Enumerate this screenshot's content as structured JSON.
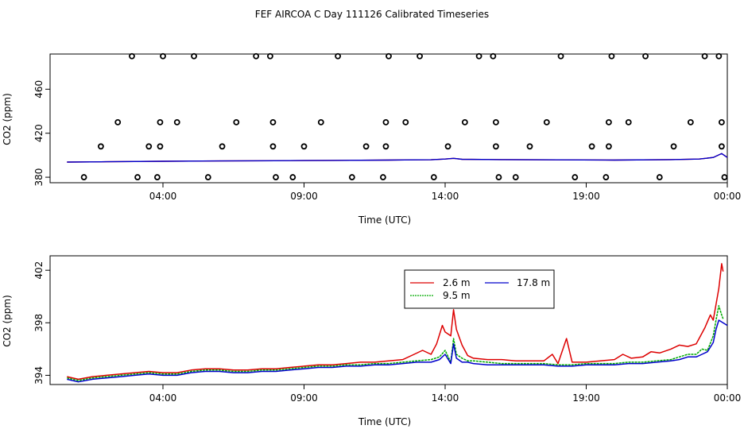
{
  "title": "FEF AIRCOA C  Day 111126  Calibrated Timeseries",
  "colors": {
    "s1": "#dd0000",
    "s2": "#00aa00",
    "s3": "#0000cc",
    "axis": "#000000"
  },
  "chart_data": [
    {
      "type": "scatter",
      "xlabel": "Time (UTC)",
      "ylabel": "CO2 (ppm)",
      "xticks": [
        {
          "v": 4,
          "label": "04:00"
        },
        {
          "v": 9,
          "label": "09:00"
        },
        {
          "v": 14,
          "label": "14:00"
        },
        {
          "v": 19,
          "label": "19:00"
        },
        {
          "v": 24,
          "label": "00:00"
        }
      ],
      "yticks": [
        {
          "v": 380,
          "label": "380"
        },
        {
          "v": 420,
          "label": "420"
        },
        {
          "v": 460,
          "label": "460"
        }
      ],
      "xlim": [
        0,
        24
      ],
      "ylim": [
        375,
        492
      ],
      "markers": [
        [
          1.2,
          380
        ],
        [
          1.8,
          408
        ],
        [
          2.4,
          430
        ],
        [
          2.9,
          490
        ],
        [
          3.1,
          380
        ],
        [
          3.5,
          408
        ],
        [
          3.8,
          380
        ],
        [
          3.9,
          408
        ],
        [
          3.9,
          430
        ],
        [
          4.0,
          490
        ],
        [
          4.5,
          430
        ],
        [
          5.1,
          490
        ],
        [
          5.6,
          380
        ],
        [
          6.1,
          408
        ],
        [
          6.6,
          430
        ],
        [
          7.3,
          490
        ],
        [
          7.8,
          490
        ],
        [
          7.9,
          430
        ],
        [
          7.9,
          408
        ],
        [
          8.0,
          380
        ],
        [
          8.6,
          380
        ],
        [
          9.0,
          408
        ],
        [
          9.6,
          430
        ],
        [
          10.2,
          490
        ],
        [
          10.7,
          380
        ],
        [
          11.2,
          408
        ],
        [
          11.8,
          380
        ],
        [
          11.9,
          408
        ],
        [
          11.9,
          430
        ],
        [
          12.0,
          490
        ],
        [
          12.6,
          430
        ],
        [
          13.1,
          490
        ],
        [
          13.6,
          380
        ],
        [
          14.1,
          408
        ],
        [
          14.7,
          430
        ],
        [
          15.2,
          490
        ],
        [
          15.7,
          490
        ],
        [
          15.8,
          430
        ],
        [
          15.8,
          408
        ],
        [
          15.9,
          380
        ],
        [
          16.5,
          380
        ],
        [
          17.0,
          408
        ],
        [
          17.6,
          430
        ],
        [
          18.1,
          490
        ],
        [
          18.6,
          380
        ],
        [
          19.2,
          408
        ],
        [
          19.7,
          380
        ],
        [
          19.8,
          408
        ],
        [
          19.8,
          430
        ],
        [
          19.9,
          490
        ],
        [
          20.5,
          430
        ],
        [
          21.1,
          490
        ],
        [
          21.6,
          380
        ],
        [
          22.1,
          408
        ],
        [
          22.7,
          430
        ],
        [
          23.2,
          490
        ],
        [
          23.7,
          490
        ],
        [
          23.8,
          430
        ],
        [
          23.8,
          408
        ],
        [
          23.9,
          380
        ]
      ],
      "lines": [
        {
          "x": [
            0.6,
            2,
            4,
            6,
            8,
            10,
            12,
            13.5,
            14,
            14.3,
            14.6,
            16,
            18,
            20,
            22,
            23,
            23.5,
            23.8,
            24
          ],
          "y": [
            393.8,
            394.1,
            394.5,
            394.8,
            395.0,
            395.3,
            395.6,
            395.9,
            396.5,
            397.2,
            396.3,
            396.0,
            395.8,
            395.6,
            396.0,
            396.5,
            398.0,
            401.5,
            398.0
          ]
        }
      ]
    },
    {
      "type": "line",
      "xlabel": "Time (UTC)",
      "ylabel": "CO2 (ppm)",
      "xticks": [
        {
          "v": 4,
          "label": "04:00"
        },
        {
          "v": 9,
          "label": "09:00"
        },
        {
          "v": 14,
          "label": "14:00"
        },
        {
          "v": 19,
          "label": "19:00"
        },
        {
          "v": 24,
          "label": "00:00"
        }
      ],
      "yticks": [
        {
          "v": 394,
          "label": "394"
        },
        {
          "v": 398,
          "label": "398"
        },
        {
          "v": 402,
          "label": "402"
        }
      ],
      "xlim": [
        0,
        24
      ],
      "ylim": [
        393.3,
        403.1
      ],
      "legend": [
        "2.6 m",
        "9.5 m",
        "17.8 m"
      ],
      "series": [
        {
          "name": "2.6 m",
          "x": [
            0.6,
            1.0,
            1.5,
            2.0,
            2.5,
            3.0,
            3.5,
            4.0,
            4.5,
            5.0,
            5.5,
            6.0,
            6.5,
            7.0,
            7.5,
            8.0,
            8.5,
            9.0,
            9.5,
            10.0,
            10.5,
            11.0,
            11.5,
            12.0,
            12.5,
            12.9,
            13.2,
            13.5,
            13.7,
            13.9,
            14.0,
            14.2,
            14.3,
            14.4,
            14.6,
            14.8,
            15.0,
            15.5,
            16.0,
            16.5,
            17.0,
            17.5,
            17.8,
            18.0,
            18.3,
            18.5,
            19.0,
            19.5,
            20.0,
            20.3,
            20.6,
            21.0,
            21.3,
            21.6,
            22.0,
            22.3,
            22.6,
            22.9,
            23.0,
            23.2,
            23.4,
            23.5,
            23.6,
            23.7,
            23.8,
            23.85
          ],
          "y": [
            393.9,
            393.7,
            393.9,
            394.0,
            394.1,
            394.2,
            394.3,
            394.2,
            394.2,
            394.4,
            394.5,
            394.5,
            394.4,
            394.4,
            394.5,
            394.5,
            394.6,
            394.7,
            394.8,
            394.8,
            394.9,
            395.0,
            395.0,
            395.1,
            395.2,
            395.6,
            395.9,
            395.6,
            396.4,
            397.8,
            397.3,
            397.0,
            399.0,
            397.5,
            396.3,
            395.5,
            395.3,
            395.2,
            395.2,
            395.1,
            395.1,
            395.1,
            395.6,
            394.9,
            396.8,
            395.0,
            395.0,
            395.1,
            395.2,
            395.6,
            395.3,
            395.4,
            395.8,
            395.7,
            396.0,
            396.3,
            396.2,
            396.4,
            396.8,
            397.6,
            398.6,
            398.2,
            399.4,
            400.6,
            402.5,
            401.9
          ]
        },
        {
          "name": "9.5 m",
          "x": [
            0.6,
            1.0,
            1.5,
            2.0,
            2.5,
            3.0,
            3.5,
            4.0,
            4.5,
            5.0,
            5.5,
            6.0,
            6.5,
            7.0,
            7.5,
            8.0,
            8.5,
            9.0,
            9.5,
            10.0,
            10.5,
            11.0,
            11.5,
            12.0,
            12.5,
            13.0,
            13.5,
            13.8,
            14.0,
            14.2,
            14.3,
            14.4,
            14.6,
            14.8,
            15.0,
            15.5,
            16.0,
            16.5,
            17.0,
            17.5,
            18.0,
            18.5,
            19.0,
            19.5,
            20.0,
            20.5,
            21.0,
            21.5,
            22.0,
            22.3,
            22.6,
            22.9,
            23.1,
            23.3,
            23.5,
            23.6,
            23.7,
            23.8,
            23.85
          ],
          "y": [
            393.8,
            393.6,
            393.8,
            393.9,
            394.0,
            394.1,
            394.2,
            394.1,
            394.1,
            394.3,
            394.4,
            394.4,
            394.3,
            394.3,
            394.4,
            394.4,
            394.5,
            394.6,
            394.7,
            394.7,
            394.8,
            394.8,
            394.9,
            394.9,
            395.0,
            395.1,
            395.2,
            395.4,
            395.9,
            395.0,
            396.8,
            395.6,
            395.3,
            395.1,
            395.1,
            395.0,
            394.9,
            394.9,
            394.9,
            394.9,
            394.8,
            394.8,
            394.9,
            394.9,
            394.9,
            395.0,
            395.0,
            395.1,
            395.2,
            395.4,
            395.6,
            395.6,
            396.0,
            395.9,
            397.0,
            398.2,
            399.3,
            398.6,
            398.3
          ]
        },
        {
          "name": "17.8 m",
          "x": [
            0.6,
            1.0,
            1.5,
            2.0,
            2.5,
            3.0,
            3.5,
            4.0,
            4.5,
            5.0,
            5.5,
            6.0,
            6.5,
            7.0,
            7.5,
            8.0,
            8.5,
            9.0,
            9.5,
            10.0,
            10.5,
            11.0,
            11.5,
            12.0,
            12.5,
            13.0,
            13.5,
            13.8,
            14.0,
            14.2,
            14.3,
            14.4,
            14.6,
            14.8,
            15.0,
            15.5,
            16.0,
            16.5,
            17.0,
            17.5,
            18.0,
            18.5,
            19.0,
            19.5,
            20.0,
            20.5,
            21.0,
            21.5,
            22.0,
            22.3,
            22.6,
            22.9,
            23.1,
            23.3,
            23.5,
            23.6,
            23.7,
            24.0
          ],
          "y": [
            393.7,
            393.5,
            393.7,
            393.8,
            393.9,
            394.0,
            394.1,
            394.0,
            394.0,
            394.2,
            394.3,
            394.3,
            394.2,
            394.2,
            394.3,
            394.3,
            394.4,
            394.5,
            394.6,
            394.6,
            394.7,
            394.7,
            394.8,
            394.8,
            394.9,
            395.0,
            395.0,
            395.2,
            395.6,
            394.9,
            396.4,
            395.3,
            395.0,
            395.0,
            394.9,
            394.8,
            394.8,
            394.8,
            394.8,
            394.8,
            394.7,
            394.7,
            394.8,
            394.8,
            394.8,
            394.9,
            394.9,
            395.0,
            395.1,
            395.2,
            395.4,
            395.4,
            395.6,
            395.8,
            396.5,
            397.5,
            398.2,
            397.8
          ]
        }
      ]
    }
  ]
}
